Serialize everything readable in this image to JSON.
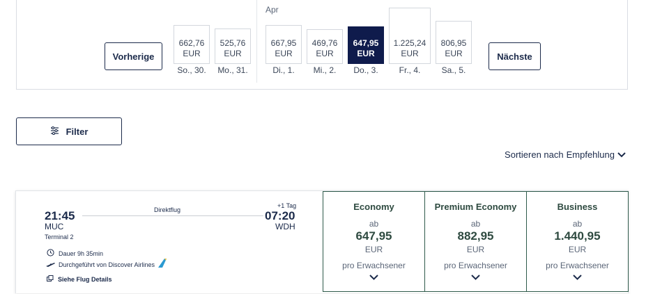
{
  "date_carousel": {
    "prev_label": "Vorherige",
    "next_label": "Nächste",
    "month_label": "Apr",
    "days": [
      {
        "price": "662,76",
        "currency": "EUR",
        "label": "So., 30.",
        "selected": false
      },
      {
        "price": "525,76",
        "currency": "EUR",
        "label": "Mo., 31.",
        "selected": false
      },
      {
        "price": "667,95",
        "currency": "EUR",
        "label": "Di., 1.",
        "selected": false
      },
      {
        "price": "469,76",
        "currency": "EUR",
        "label": "Mi., 2.",
        "selected": false
      },
      {
        "price": "647,95",
        "currency": "EUR",
        "label": "Do., 3.",
        "selected": true
      },
      {
        "price": "1.225,24",
        "currency": "EUR",
        "label": "Fr., 4.",
        "selected": false
      },
      {
        "price": "806,95",
        "currency": "EUR",
        "label": "Sa., 5.",
        "selected": false
      }
    ]
  },
  "filter": {
    "label": "Filter",
    "icon": "sliders-icon"
  },
  "sort": {
    "prefix": "Sortieren nach",
    "value": "Empfehlung",
    "icon": "chevron-down-icon"
  },
  "flight": {
    "departure_time": "21:45",
    "departure_airport": "MUC",
    "departure_terminal": "Terminal 2",
    "flight_type": "Direktflug",
    "day_offset": "+1 Tag",
    "arrival_time": "07:20",
    "arrival_airport": "WDH",
    "duration": "Dauer 9h 35min",
    "operator": "Durchgeführt von Discover Airlines",
    "details_link": "Siehe Flug Details"
  },
  "fares": [
    {
      "name": "Economy",
      "ab": "ab",
      "price": "647,95",
      "currency": "EUR",
      "per": "pro Erwachsener"
    },
    {
      "name": "Premium Economy",
      "ab": "ab",
      "price": "882,95",
      "currency": "EUR",
      "per": "pro Erwachsener"
    },
    {
      "name": "Business",
      "ab": "ab",
      "price": "1.440,95",
      "currency": "EUR",
      "per": "pro Erwachsener"
    }
  ],
  "colors": {
    "navy": "#1b2a4a",
    "selected": "#0f1b4c",
    "fare_green": "#2e4a40"
  }
}
